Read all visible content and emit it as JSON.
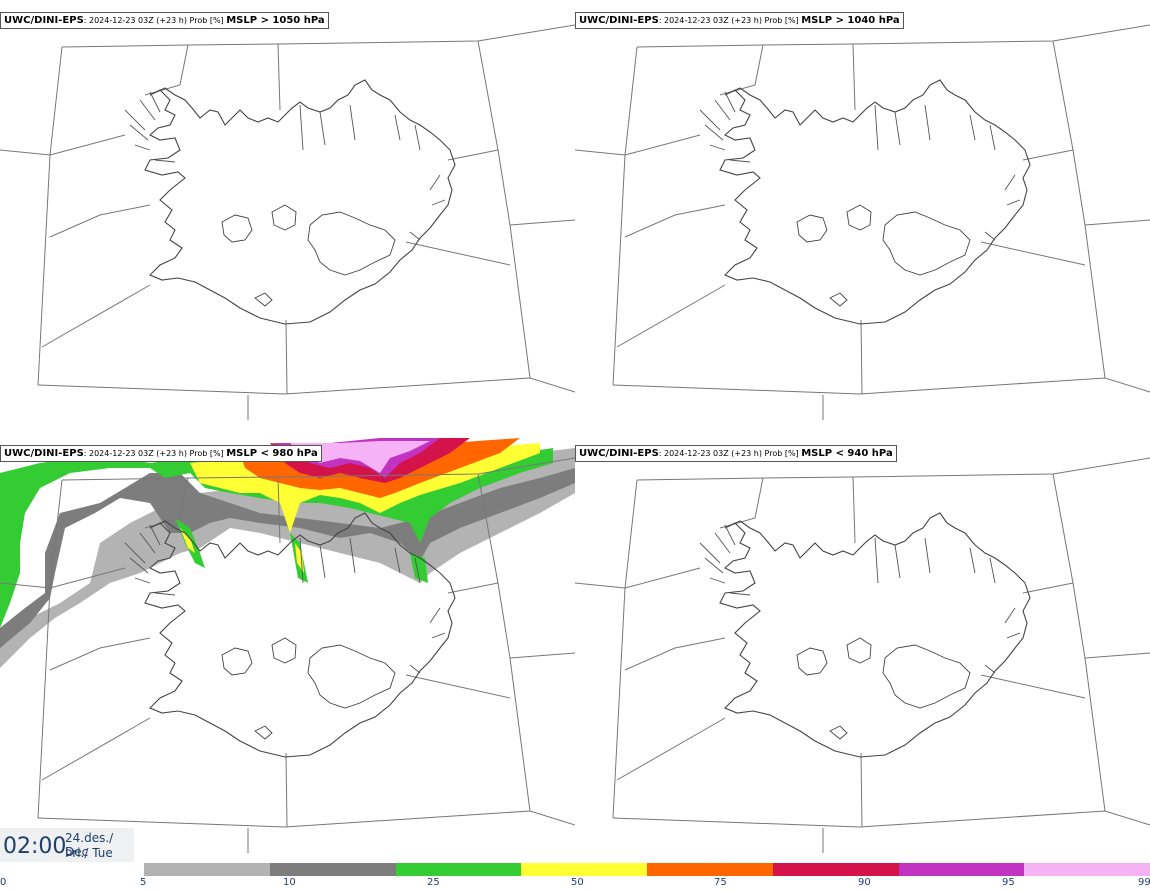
{
  "panels": [
    {
      "source": "UWC/DINI-EPS",
      "meta": ": 2024-12-23 03Z (+23 h) Prob [%] ",
      "variable": "MSLP > 1050 hPa"
    },
    {
      "source": "UWC/DINI-EPS",
      "meta": ": 2024-12-23 03Z (+23 h) Prob [%] ",
      "variable": "MSLP > 1040 hPa"
    },
    {
      "source": "UWC/DINI-EPS",
      "meta": ": 2024-12-23 03Z (+23 h) Prob [%] ",
      "variable": "MSLP < 980 hPa"
    },
    {
      "source": "UWC/DINI-EPS",
      "meta": ": 2024-12-23 03Z (+23 h) Prob [%] ",
      "variable": "MSLP < 940 hPa"
    }
  ],
  "time": {
    "clock": "02:00",
    "date_line1": "24.des./ Dec",
    "date_line2": "Þri./ Tue"
  },
  "colorbar": {
    "ticks": [
      "0",
      "5",
      "10",
      "25",
      "50",
      "75",
      "90",
      "95",
      "99"
    ],
    "colors": [
      "#b3b3b3",
      "#7d7d7d",
      "#33cc33",
      "#ffff33",
      "#ff6600",
      "#d4134a",
      "#c233c2",
      "#f5b3f5"
    ]
  }
}
